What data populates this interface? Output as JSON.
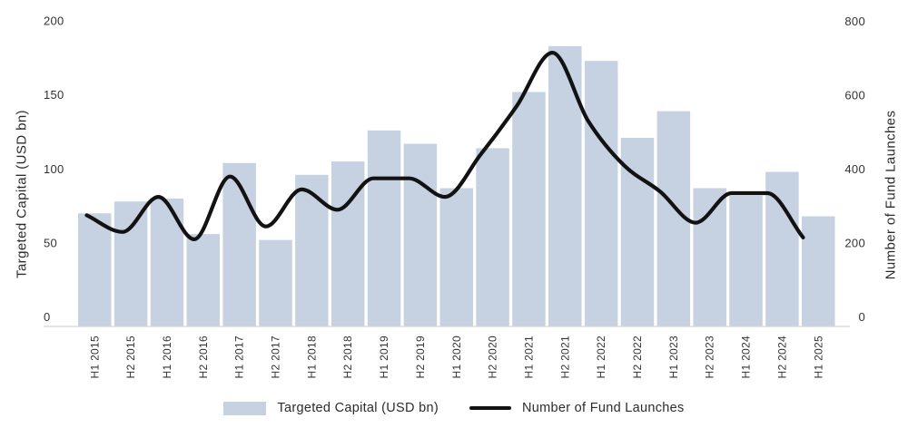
{
  "chart_data": {
    "type": "combo-bar-line",
    "title": "",
    "categories": [
      "H1 2015",
      "H2 2015",
      "H1 2016",
      "H2 2016",
      "H1 2017",
      "H2 2017",
      "H1 2018",
      "H2 2018",
      "H1 2019",
      "H2 2019",
      "H1 2020",
      "H2 2020",
      "H1 2021",
      "H2 2021",
      "H1 2022",
      "H2 2022",
      "H1 2023",
      "H2 2023",
      "H1 2024",
      "H2 2024",
      "H1 2025"
    ],
    "series": [
      {
        "name": "Targeted Capital (USD bn)",
        "type": "bar",
        "y_axis": "left",
        "values": [
          70,
          78,
          80,
          56,
          104,
          52,
          96,
          105,
          126,
          117,
          87,
          114,
          152,
          183,
          173,
          121,
          139,
          87,
          82,
          98,
          68
        ]
      },
      {
        "name": "Number of Fund Launches",
        "type": "line",
        "y_axis": "right",
        "values": [
          275,
          230,
          325,
          210,
          380,
          245,
          345,
          290,
          375,
          375,
          325,
          440,
          570,
          715,
          530,
          410,
          340,
          255,
          335,
          335,
          215
        ]
      }
    ],
    "left_axis": {
      "title": "Targeted Capital (USD bn)",
      "ticks": [
        0,
        50,
        100,
        150,
        200
      ],
      "min": 0,
      "max": 200
    },
    "right_axis": {
      "title": "Number of Fund Launches",
      "ticks": [
        0,
        200,
        400,
        600,
        800
      ],
      "min": 0,
      "max": 800
    },
    "grid_lines": false,
    "legend_position": "bottom",
    "line_style": "smooth",
    "colors": {
      "bar_fill": "#C6D1E1",
      "line_stroke": "#121212",
      "axis_line": "#D8D8D8",
      "tick_text": "#333333",
      "title_text": "#2B2B2B",
      "background": "#FFFFFF"
    }
  },
  "legend": {
    "items": [
      {
        "label": "Targeted Capital (USD bn)",
        "swatch": "bar"
      },
      {
        "label": "Number of Fund Launches",
        "swatch": "line"
      }
    ]
  }
}
